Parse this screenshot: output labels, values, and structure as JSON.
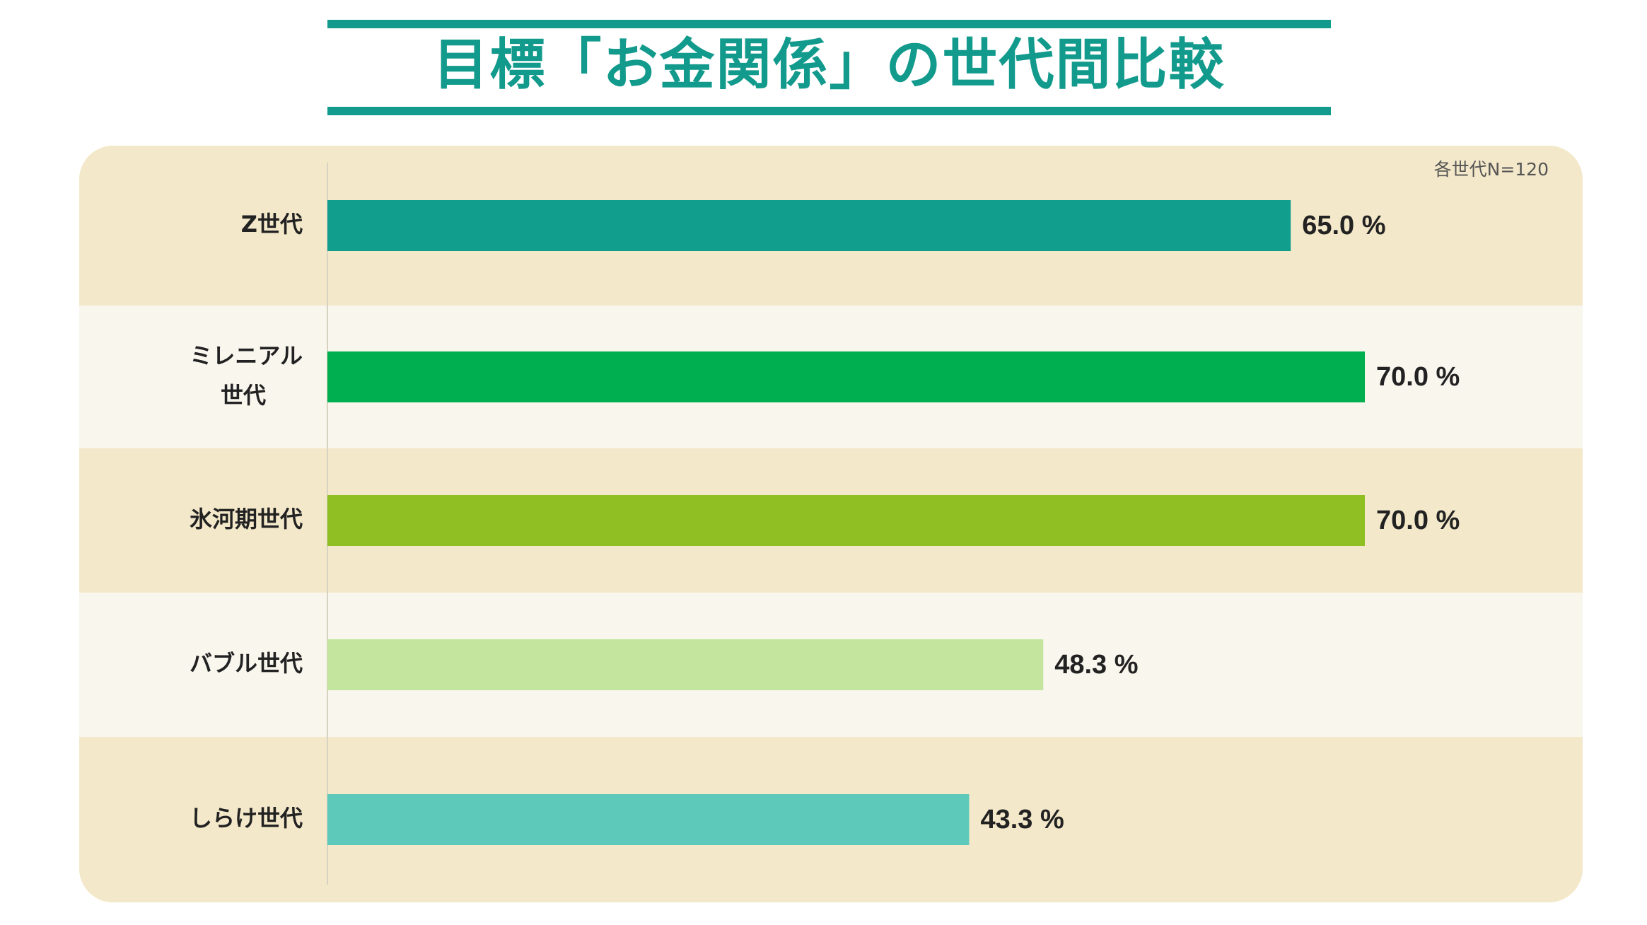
{
  "title": "目標「お金関係」の世代間比較",
  "note": "各世代N=120",
  "colors": {
    "title": "#129a8c",
    "panel_bg": "#f3e8c9",
    "band_alt": "#f9f6ee"
  },
  "chart_data": {
    "type": "bar",
    "orientation": "horizontal",
    "categories": [
      [
        "Z世代"
      ],
      [
        "ミレニアル",
        "世代"
      ],
      [
        "氷河期世代"
      ],
      [
        "バブル世代"
      ],
      [
        "しらけ世代"
      ]
    ],
    "values": [
      65.0,
      70.0,
      70.0,
      48.3,
      43.3
    ],
    "value_labels": [
      "65.0 %",
      "70.0 %",
      "70.0 %",
      "48.3 %",
      "43.3 %"
    ],
    "bar_colors": [
      "#129e8c",
      "#00b050",
      "#8fbf22",
      "#c3e59d",
      "#5cc9bb"
    ],
    "unit": "%",
    "xlim": [
      0,
      100
    ],
    "grid": false,
    "legend": "none"
  }
}
